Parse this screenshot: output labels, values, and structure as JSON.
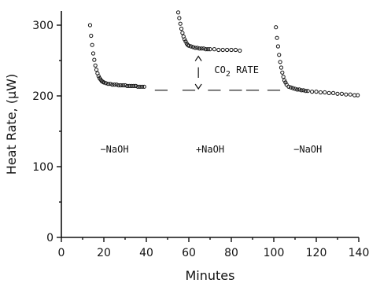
{
  "chart_data": {
    "type": "scatter",
    "title": "",
    "xlabel": "Minutes",
    "ylabel": "Heat Rate, (μW)",
    "xlim": [
      0,
      140
    ],
    "ylim": [
      0,
      320
    ],
    "x_ticks": [
      "0",
      "20",
      "40",
      "60",
      "80",
      "100",
      "120",
      "140"
    ],
    "y_ticks": [
      "0",
      "100",
      "200",
      "300"
    ],
    "grid": false,
    "series": [
      {
        "x": [
          13.5,
          14.0,
          14.5,
          15.0,
          15.5,
          16.0,
          16.5,
          17.0,
          17.5,
          18.0,
          18.5,
          19.0,
          19.5,
          20,
          21,
          22,
          23,
          24,
          25,
          26,
          27,
          28,
          29,
          30,
          31,
          32,
          33,
          34,
          35,
          36,
          37,
          38,
          39
        ],
        "y": [
          300,
          285,
          272,
          260,
          251,
          243,
          237,
          232,
          228,
          225,
          223,
          221,
          220,
          219,
          218,
          217,
          217,
          216,
          216,
          216,
          215,
          215,
          215,
          215,
          214,
          214,
          214,
          214,
          214,
          213,
          213,
          213,
          213
        ]
      },
      {
        "x": [
          55.0,
          55.5,
          56.0,
          56.5,
          57.0,
          57.5,
          58.0,
          58.5,
          59.0,
          59.5,
          60,
          61,
          62,
          63,
          64,
          65,
          66,
          67,
          68,
          69,
          70,
          72,
          74,
          76,
          78,
          80,
          82,
          84
        ],
        "y": [
          318,
          310,
          302,
          295,
          289,
          284,
          280,
          277,
          274,
          272,
          271,
          270,
          269,
          268,
          268,
          267,
          267,
          267,
          266,
          266,
          266,
          266,
          265,
          265,
          265,
          265,
          265,
          264
        ]
      },
      {
        "x": [
          101.0,
          101.5,
          102.0,
          102.5,
          103.0,
          103.5,
          104.0,
          104.5,
          105.0,
          105.5,
          106,
          107,
          108,
          109,
          110,
          111,
          112,
          113,
          114,
          115,
          116,
          118,
          120,
          122,
          124,
          126,
          128,
          130,
          132,
          134,
          136,
          138,
          139.5
        ],
        "y": [
          297,
          282,
          270,
          258,
          248,
          240,
          233,
          227,
          222,
          219,
          216,
          213,
          212,
          211,
          210,
          209,
          209,
          208,
          208,
          207,
          207,
          206,
          206,
          205,
          205,
          204,
          204,
          203,
          203,
          202,
          202,
          201,
          201
        ]
      }
    ],
    "baseline": {
      "y": 208,
      "x_segments": [
        [
          44,
          50
        ],
        [
          57,
          63
        ],
        [
          69,
          75
        ],
        [
          79,
          85
        ],
        [
          87,
          93
        ],
        [
          97,
          103
        ]
      ]
    },
    "annotations": [
      {
        "text": "−NaOH",
        "x": 25,
        "y": 120
      },
      {
        "text": "+NaOH",
        "x": 70,
        "y": 120
      },
      {
        "text": "−NaOH",
        "x": 116,
        "y": 120
      },
      {
        "text": "CO",
        "subscript": "2",
        "suffix": " RATE",
        "x": 72,
        "y": 232
      }
    ],
    "co2_bracket": {
      "x": 64.5,
      "y_top": 256,
      "y_bottom": 210
    }
  }
}
